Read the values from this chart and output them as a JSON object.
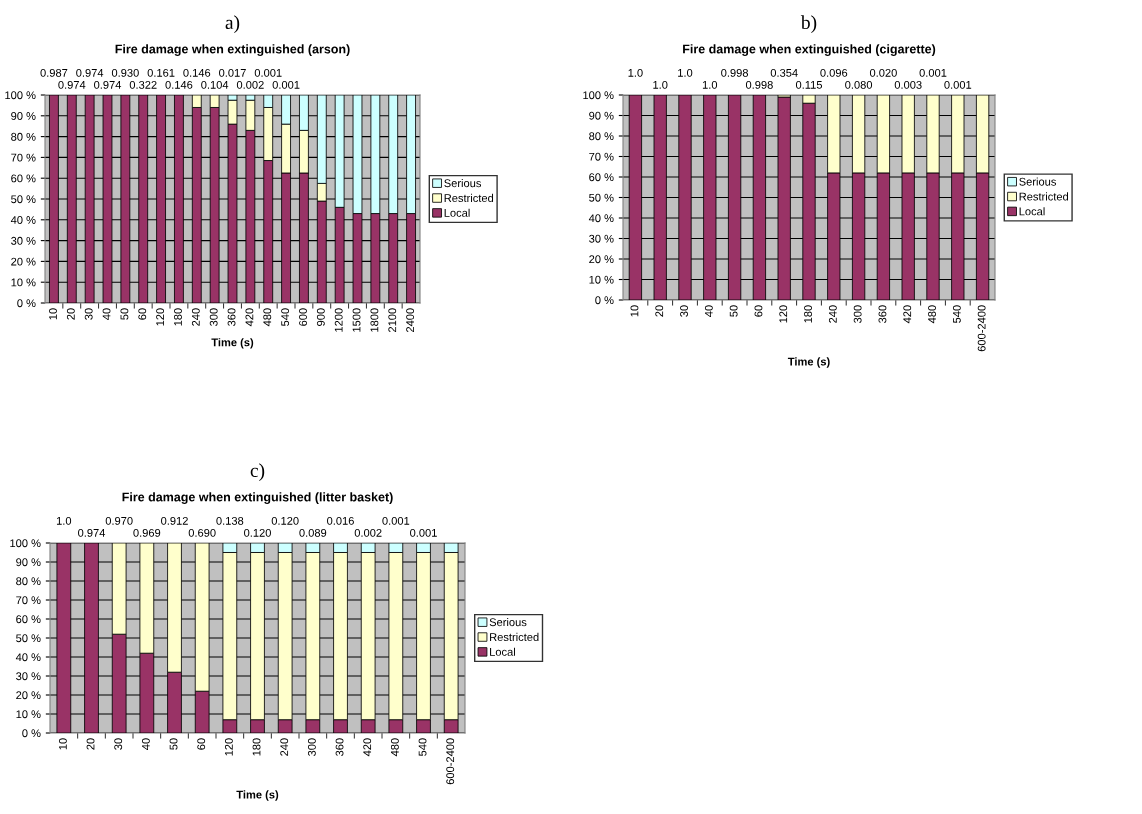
{
  "chart_data": [
    {
      "type": "bar",
      "stacked": true,
      "title": "Fire damage when extinguished (arson)",
      "xlabel": "Time (s)",
      "legend": "right",
      "grid": "y",
      "categories": [
        "10",
        "20",
        "30",
        "40",
        "50",
        "60",
        "120",
        "180",
        "240",
        "300",
        "360",
        "420",
        "480",
        "540",
        "600",
        "900",
        "1200",
        "1500",
        "1800",
        "2100",
        "2400"
      ],
      "series": [
        {
          "name": "Local",
          "color": "#993366",
          "values": [
            100,
            100,
            100,
            100,
            100,
            100,
            100,
            100,
            94,
            94,
            86,
            83,
            68.5,
            62.5,
            62.5,
            49,
            46,
            43,
            43,
            43,
            43
          ]
        },
        {
          "name": "Restricted",
          "color": "#ffffcc",
          "values": [
            0,
            0,
            0,
            0,
            0,
            0,
            0,
            0,
            6,
            6,
            11.5,
            14.5,
            25.5,
            23.5,
            20.5,
            8.5,
            0,
            0,
            0,
            0,
            0
          ]
        },
        {
          "name": "Serious",
          "color": "#ccffff",
          "values": [
            0,
            0,
            0,
            0,
            0,
            0,
            0,
            0,
            0,
            0,
            2.5,
            2.5,
            6,
            14,
            17,
            42.5,
            54,
            57,
            57,
            57,
            57
          ]
        }
      ],
      "ylim": [
        0,
        100
      ],
      "yticks": [
        {
          "value": 0,
          "label": "0 %"
        },
        {
          "value": 10,
          "label": "10 %"
        },
        {
          "value": 20,
          "label": "20 %"
        },
        {
          "value": 30,
          "label": "30 %"
        },
        {
          "value": 40,
          "label": "40 %"
        },
        {
          "value": 50,
          "label": "50 %"
        },
        {
          "value": 60,
          "label": "60 %"
        },
        {
          "value": 70,
          "label": "70 %"
        },
        {
          "value": 80,
          "label": "80 %"
        },
        {
          "value": 90,
          "label": "90 %"
        },
        {
          "value": 100,
          "label": "100 %"
        }
      ],
      "annotations": [
        "a)",
        "0.987",
        "0.974",
        "0.974",
        "0.974",
        "0.930",
        "0.322",
        "0.161",
        "0.146",
        "0.146",
        "0.104",
        "0.017",
        "0.002",
        "0.001",
        "0.001"
      ]
    },
    {
      "type": "bar",
      "stacked": true,
      "title": "Fire damage when extinguished (cigarette)",
      "xlabel": "Time (s)",
      "legend": "right",
      "grid": "y",
      "categories": [
        "10",
        "20",
        "30",
        "40",
        "50",
        "60",
        "120",
        "180",
        "240",
        "300",
        "360",
        "420",
        "480",
        "540",
        "600-2400"
      ],
      "series": [
        {
          "name": "Local",
          "color": "#993366",
          "values": [
            100,
            100,
            100,
            100,
            100,
            100,
            99,
            96,
            62,
            62,
            62,
            62,
            62,
            62,
            62
          ]
        },
        {
          "name": "Restricted",
          "color": "#ffffcc",
          "values": [
            0,
            0,
            0,
            0,
            0,
            0,
            1,
            4,
            38,
            38,
            38,
            38,
            38,
            38,
            38
          ]
        },
        {
          "name": "Serious",
          "color": "#ccffff",
          "values": [
            0,
            0,
            0,
            0,
            0,
            0,
            0,
            0,
            0,
            0,
            0,
            0,
            0,
            0,
            0
          ]
        }
      ],
      "ylim": [
        0,
        100
      ],
      "yticks": [
        {
          "value": 0,
          "label": "0 %"
        },
        {
          "value": 10,
          "label": "10 %"
        },
        {
          "value": 20,
          "label": "20 %"
        },
        {
          "value": 30,
          "label": "30 %"
        },
        {
          "value": 40,
          "label": "40 %"
        },
        {
          "value": 50,
          "label": "50 %"
        },
        {
          "value": 60,
          "label": "60 %"
        },
        {
          "value": 70,
          "label": "70 %"
        },
        {
          "value": 80,
          "label": "80 %"
        },
        {
          "value": 90,
          "label": "90 %"
        },
        {
          "value": 100,
          "label": "100 %"
        }
      ],
      "annotations": [
        "b)",
        "1.0",
        "1.0",
        "1.0",
        "1.0",
        "0.998",
        "0.998",
        "0.354",
        "0.115",
        "0.096",
        "0.080",
        "0.020",
        "0.003",
        "0.001",
        "0.001"
      ]
    },
    {
      "type": "bar",
      "stacked": true,
      "title": "Fire damage when extinguished (litter basket)",
      "xlabel": "Time (s)",
      "legend": "right",
      "grid": "y",
      "categories": [
        "10",
        "20",
        "30",
        "40",
        "50",
        "60",
        "120",
        "180",
        "240",
        "300",
        "360",
        "420",
        "480",
        "540",
        "600-2400"
      ],
      "series": [
        {
          "name": "Local",
          "color": "#993366",
          "values": [
            100,
            100,
            52,
            42,
            32,
            22,
            7,
            7,
            7,
            7,
            7,
            7,
            7,
            7,
            7
          ]
        },
        {
          "name": "Restricted",
          "color": "#ffffcc",
          "values": [
            0,
            0,
            48,
            58,
            68,
            78,
            88,
            88,
            88,
            88,
            88,
            88,
            88,
            88,
            88
          ]
        },
        {
          "name": "Serious",
          "color": "#ccffff",
          "values": [
            0,
            0,
            0,
            0,
            0,
            0,
            5,
            5,
            5,
            5,
            5,
            5,
            5,
            5,
            5
          ]
        }
      ],
      "ylim": [
        0,
        100
      ],
      "yticks": [
        {
          "value": 0,
          "label": "0 %"
        },
        {
          "value": 10,
          "label": "10 %"
        },
        {
          "value": 20,
          "label": "20 %"
        },
        {
          "value": 30,
          "label": "30 %"
        },
        {
          "value": 40,
          "label": "40 %"
        },
        {
          "value": 50,
          "label": "50 %"
        },
        {
          "value": 60,
          "label": "60 %"
        },
        {
          "value": 70,
          "label": "70 %"
        },
        {
          "value": 80,
          "label": "80 %"
        },
        {
          "value": 90,
          "label": "90 %"
        },
        {
          "value": 100,
          "label": "100 %"
        }
      ],
      "annotations": [
        "c)",
        "1.0",
        "0.974",
        "0.970",
        "0.969",
        "0.912",
        "0.690",
        "0.138",
        "0.120",
        "0.120",
        "0.089",
        "0.016",
        "0.002",
        "0.001",
        "0.001"
      ]
    }
  ]
}
